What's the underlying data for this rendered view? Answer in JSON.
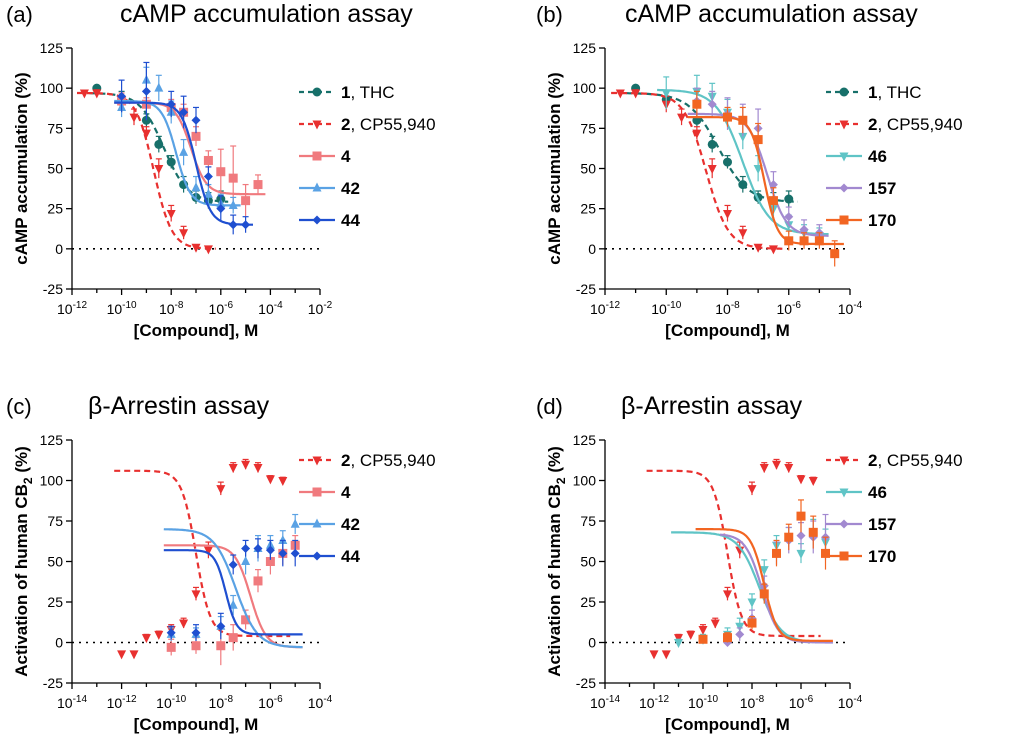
{
  "chart_data": [
    {
      "panel_label": "(a)",
      "title": "cAMP accumulation assay",
      "type": "scatter",
      "x_scale": "log",
      "xlabel": "[Compound], M",
      "ylabel": "cAMP accumulation (%)",
      "xlim": [
        -12,
        -2
      ],
      "ylim": [
        -25,
        125
      ],
      "yticks": [
        -25,
        0,
        25,
        50,
        75,
        100,
        125
      ],
      "xticks": [
        -12,
        -10,
        -8,
        -6,
        -4,
        -2
      ],
      "baseline": 0,
      "legend_position": "right",
      "series": [
        {
          "id": "1",
          "name": "1",
          "name_suffix": ", THC",
          "color": "#17706a",
          "line": "dash",
          "marker": "circle",
          "x": [
            -11.0,
            -10.0,
            -9.0,
            -8.5,
            -8.0,
            -7.5,
            -7.0,
            -6.5,
            -6.0
          ],
          "y": [
            100,
            93,
            80,
            65,
            54,
            40,
            32,
            30,
            31
          ],
          "err": [
            0,
            5,
            4,
            5,
            4,
            5,
            4,
            5,
            5
          ],
          "fit": {
            "top": 97,
            "bottom": 29,
            "logec50": -8.3,
            "hill": 0.9
          }
        },
        {
          "id": "2",
          "name": "2",
          "name_suffix": ", CP55,940",
          "color": "#e8302f",
          "line": "dash",
          "marker": "tri-down",
          "x": [
            -11.5,
            -11.0,
            -10.0,
            -9.5,
            -9.0,
            -8.5,
            -8.0,
            -7.5,
            -7.0,
            -6.5
          ],
          "y": [
            97,
            97,
            90,
            82,
            72,
            50,
            22,
            10,
            1,
            0
          ],
          "err": [
            0,
            2,
            5,
            5,
            4,
            6,
            5,
            4,
            1,
            1
          ],
          "fit": {
            "top": 97,
            "bottom": 0,
            "logec50": -8.7,
            "hill": 1.2
          }
        },
        {
          "id": "4",
          "name": "4",
          "name_suffix": "",
          "color": "#f07a7e",
          "line": "solid",
          "marker": "square",
          "x": [
            -10.0,
            -9.0,
            -8.0,
            -7.5,
            -7.0,
            -6.5,
            -6.0,
            -5.5,
            -5.0,
            -4.5
          ],
          "y": [
            92,
            90,
            88,
            85,
            70,
            55,
            48,
            44,
            30,
            40
          ],
          "err": [
            5,
            4,
            5,
            5,
            6,
            6,
            14,
            20,
            10,
            6
          ],
          "fit": {
            "top": 91,
            "bottom": 34,
            "logec50": -7.2,
            "hill": 1.4
          }
        },
        {
          "id": "42",
          "name": "42",
          "name_suffix": "",
          "color": "#5aa2e4",
          "line": "solid",
          "marker": "triangle",
          "x": [
            -10.0,
            -9.0,
            -8.5,
            -8.0,
            -7.5,
            -7.0,
            -6.5,
            -6.0,
            -5.5
          ],
          "y": [
            88,
            105,
            100,
            85,
            60,
            38,
            34,
            28,
            27
          ],
          "err": [
            6,
            8,
            8,
            7,
            8,
            7,
            6,
            6,
            5
          ],
          "fit": {
            "top": 92,
            "bottom": 27,
            "logec50": -7.8,
            "hill": 1.5
          }
        },
        {
          "id": "44",
          "name": "44",
          "name_suffix": "",
          "color": "#1f4fd0",
          "line": "solid",
          "marker": "diamond",
          "x": [
            -10.0,
            -9.0,
            -8.0,
            -7.5,
            -7.0,
            -6.5,
            -6.0,
            -5.5,
            -5.0
          ],
          "y": [
            95,
            98,
            90,
            85,
            80,
            45,
            25,
            15,
            15
          ],
          "err": [
            10,
            18,
            8,
            10,
            8,
            6,
            8,
            6,
            5
          ],
          "fit": {
            "top": 91,
            "bottom": 15,
            "logec50": -7.0,
            "hill": 1.5
          }
        }
      ]
    },
    {
      "panel_label": "(b)",
      "title": "cAMP accumulation assay",
      "type": "scatter",
      "x_scale": "log",
      "xlabel": "[Compound], M",
      "ylabel": "cAMP accumulation (%)",
      "xlim": [
        -12,
        -4
      ],
      "ylim": [
        -25,
        125
      ],
      "yticks": [
        -25,
        0,
        25,
        50,
        75,
        100,
        125
      ],
      "xticks": [
        -12,
        -10,
        -8,
        -6,
        -4
      ],
      "baseline": 0,
      "legend_position": "right",
      "series": [
        {
          "id": "1",
          "name": "1",
          "name_suffix": ", THC",
          "color": "#17706a",
          "line": "dash",
          "marker": "circle",
          "x": [
            -11.0,
            -10.0,
            -9.0,
            -8.5,
            -8.0,
            -7.5,
            -7.0,
            -6.5,
            -6.0
          ],
          "y": [
            100,
            93,
            80,
            65,
            54,
            40,
            32,
            30,
            31
          ],
          "err": [
            0,
            5,
            4,
            5,
            4,
            5,
            4,
            5,
            5
          ],
          "fit": {
            "top": 97,
            "bottom": 29,
            "logec50": -8.3,
            "hill": 0.9
          }
        },
        {
          "id": "2",
          "name": "2",
          "name_suffix": ", CP55,940",
          "color": "#e8302f",
          "line": "dash",
          "marker": "tri-down",
          "x": [
            -11.5,
            -11.0,
            -10.0,
            -9.5,
            -9.0,
            -8.5,
            -8.0,
            -7.5,
            -7.0,
            -6.5
          ],
          "y": [
            97,
            97,
            90,
            82,
            72,
            50,
            22,
            10,
            1,
            0
          ],
          "err": [
            0,
            2,
            5,
            5,
            4,
            6,
            5,
            4,
            1,
            1
          ],
          "fit": {
            "top": 97,
            "bottom": 0,
            "logec50": -8.7,
            "hill": 1.2
          }
        },
        {
          "id": "46",
          "name": "46",
          "name_suffix": "",
          "color": "#5fc4c6",
          "line": "solid",
          "marker": "tri-down",
          "x": [
            -10.0,
            -9.0,
            -8.5,
            -8.0,
            -7.5,
            -7.0,
            -6.5,
            -6.0,
            -5.5,
            -5.0
          ],
          "y": [
            97,
            98,
            95,
            85,
            70,
            50,
            25,
            15,
            10,
            8
          ],
          "err": [
            10,
            10,
            8,
            8,
            8,
            8,
            7,
            6,
            5,
            5
          ],
          "fit": {
            "top": 99,
            "bottom": 9,
            "logec50": -7.5,
            "hill": 1.0
          }
        },
        {
          "id": "157",
          "name": "157",
          "name_suffix": "",
          "color": "#a289d0",
          "line": "solid",
          "marker": "diamond",
          "x": [
            -9.0,
            -8.5,
            -8.0,
            -7.5,
            -7.0,
            -6.5,
            -6.0,
            -5.5,
            -5.0
          ],
          "y": [
            92,
            90,
            84,
            80,
            75,
            40,
            20,
            12,
            10
          ],
          "err": [
            8,
            8,
            10,
            10,
            12,
            8,
            6,
            6,
            5
          ],
          "fit": {
            "top": 84,
            "bottom": 8,
            "logec50": -6.7,
            "hill": 1.4
          }
        },
        {
          "id": "170",
          "name": "170",
          "name_suffix": "",
          "color": "#f26522",
          "line": "solid",
          "marker": "square",
          "x": [
            -9.0,
            -8.0,
            -7.5,
            -7.0,
            -6.5,
            -6.0,
            -5.5,
            -5.0,
            -4.5
          ],
          "y": [
            90,
            82,
            80,
            68,
            30,
            5,
            5,
            5,
            -3
          ],
          "err": [
            8,
            6,
            8,
            10,
            8,
            6,
            5,
            5,
            8
          ],
          "fit": {
            "top": 82,
            "bottom": 3,
            "logec50": -6.8,
            "hill": 2.0
          }
        }
      ]
    },
    {
      "panel_label": "(c)",
      "title": "β-Arrestin assay",
      "type": "scatter",
      "x_scale": "log",
      "xlabel": "[Compound], M",
      "ylabel_main": "Activation of human CB",
      "ylabel_sub": "2",
      "ylabel_suffix": " (%)",
      "xlim": [
        -14,
        -4
      ],
      "ylim": [
        -25,
        125
      ],
      "yticks": [
        -25,
        0,
        25,
        50,
        75,
        100,
        125
      ],
      "xticks": [
        -14,
        -12,
        -10,
        -8,
        -6,
        -4
      ],
      "baseline": 0,
      "legend_position": "right",
      "series": [
        {
          "id": "2",
          "name": "2",
          "name_suffix": ", CP55,940",
          "color": "#e8302f",
          "line": "dash",
          "marker": "tri-down",
          "x": [
            -12.0,
            -11.5,
            -11.0,
            -10.5,
            -10.0,
            -9.5,
            -9.0,
            -8.5,
            -8.0,
            -7.5,
            -7.0,
            -6.5,
            -6.0,
            -5.5
          ],
          "y": [
            -7,
            -7,
            3,
            5,
            8,
            12,
            30,
            57,
            95,
            108,
            110,
            108,
            101,
            100
          ],
          "err": [
            0,
            0,
            2,
            2,
            3,
            3,
            4,
            5,
            4,
            3,
            3,
            3,
            2,
            2
          ],
          "fit": {
            "top": 106,
            "bottom": 4,
            "logec50": -9.0,
            "hill": 1.5
          }
        },
        {
          "id": "4",
          "name": "4",
          "name_suffix": "",
          "color": "#f07a7e",
          "line": "solid",
          "marker": "square",
          "x": [
            -10.0,
            -9.0,
            -8.0,
            -7.5,
            -7.0,
            -6.5,
            -6.0,
            -5.5,
            -5.0
          ],
          "y": [
            -3,
            -2,
            -2,
            3,
            14,
            38,
            50,
            55,
            60
          ],
          "err": [
            5,
            5,
            12,
            8,
            6,
            7,
            8,
            7,
            6
          ],
          "fit": {
            "top": 60,
            "bottom": -3,
            "logec50": -6.8,
            "hill": 1.4
          }
        },
        {
          "id": "42",
          "name": "42",
          "name_suffix": "",
          "color": "#5aa2e4",
          "line": "solid",
          "marker": "triangle",
          "x": [
            -10.0,
            -9.0,
            -8.0,
            -7.5,
            -7.0,
            -6.5,
            -6.0,
            -5.5,
            -5.0
          ],
          "y": [
            5,
            5,
            10,
            23,
            50,
            58,
            60,
            63,
            73
          ],
          "err": [
            4,
            4,
            6,
            6,
            8,
            8,
            6,
            6,
            6
          ],
          "fit": {
            "top": 70,
            "bottom": -3,
            "logec50": -7.4,
            "hill": 1.0
          }
        },
        {
          "id": "44",
          "name": "44",
          "name_suffix": "",
          "color": "#1f4fd0",
          "line": "solid",
          "marker": "diamond",
          "x": [
            -10.0,
            -9.0,
            -8.0,
            -7.5,
            -7.0,
            -6.5,
            -6.0,
            -5.5,
            -5.0
          ],
          "y": [
            6,
            6,
            10,
            48,
            58,
            58,
            57,
            55,
            55
          ],
          "err": [
            4,
            5,
            8,
            6,
            5,
            6,
            6,
            8,
            8
          ],
          "fit": {
            "top": 57,
            "bottom": 5,
            "logec50": -7.8,
            "hill": 2.0
          }
        }
      ]
    },
    {
      "panel_label": "(d)",
      "title": "β-Arrestin assay",
      "type": "scatter",
      "x_scale": "log",
      "xlabel": "[Compound], M",
      "ylabel_main": "Activation of human CB",
      "ylabel_sub": "2",
      "ylabel_suffix": " (%)",
      "xlim": [
        -14,
        -4
      ],
      "ylim": [
        -25,
        125
      ],
      "yticks": [
        -25,
        0,
        25,
        50,
        75,
        100,
        125
      ],
      "xticks": [
        -14,
        -12,
        -10,
        -8,
        -6,
        -4
      ],
      "baseline": 0,
      "legend_position": "right",
      "series": [
        {
          "id": "2",
          "name": "2",
          "name_suffix": ", CP55,940",
          "color": "#e8302f",
          "line": "dash",
          "marker": "tri-down",
          "x": [
            -12.0,
            -11.5,
            -11.0,
            -10.5,
            -10.0,
            -9.5,
            -9.0,
            -8.5,
            -8.0,
            -7.5,
            -7.0,
            -6.5,
            -6.0,
            -5.5
          ],
          "y": [
            -7,
            -7,
            3,
            5,
            8,
            12,
            30,
            57,
            95,
            108,
            110,
            108,
            101,
            100
          ],
          "err": [
            0,
            0,
            2,
            2,
            3,
            3,
            4,
            5,
            4,
            3,
            3,
            3,
            2,
            2
          ],
          "fit": {
            "top": 106,
            "bottom": 4,
            "logec50": -9.0,
            "hill": 1.5
          }
        },
        {
          "id": "46",
          "name": "46",
          "name_suffix": "",
          "color": "#5fc4c6",
          "line": "solid",
          "marker": "tri-down",
          "x": [
            -11.0,
            -10.0,
            -9.0,
            -8.5,
            -8.0,
            -7.5,
            -7.0,
            -6.5,
            -6.0,
            -5.5,
            -5.0
          ],
          "y": [
            0,
            2,
            5,
            10,
            25,
            45,
            60,
            65,
            55,
            68,
            62
          ],
          "err": [
            2,
            3,
            4,
            5,
            5,
            6,
            6,
            6,
            6,
            8,
            8
          ],
          "fit": {
            "top": 68,
            "bottom": 0,
            "logec50": -7.7,
            "hill": 1.0
          }
        },
        {
          "id": "157",
          "name": "157",
          "name_suffix": "",
          "color": "#a289d0",
          "line": "solid",
          "marker": "diamond",
          "x": [
            -9.0,
            -8.5,
            -8.0,
            -7.5,
            -7.0,
            -6.5,
            -6.0,
            -5.5,
            -5.0
          ],
          "y": [
            0,
            5,
            15,
            35,
            55,
            63,
            66,
            65,
            65
          ],
          "err": [
            2,
            4,
            5,
            6,
            7,
            8,
            8,
            10,
            14
          ],
          "fit": {
            "top": 67,
            "bottom": 0,
            "logec50": -7.6,
            "hill": 1.3
          }
        },
        {
          "id": "170",
          "name": "170",
          "name_suffix": "",
          "color": "#f26522",
          "line": "solid",
          "marker": "square",
          "x": [
            -10.0,
            -9.0,
            -8.0,
            -7.5,
            -7.0,
            -6.5,
            -6.0,
            -5.5,
            -5.0
          ],
          "y": [
            2,
            3,
            12,
            30,
            55,
            65,
            78,
            68,
            55
          ],
          "err": [
            2,
            3,
            4,
            6,
            8,
            8,
            10,
            10,
            10
          ],
          "fit": {
            "top": 70,
            "bottom": 1,
            "logec50": -7.5,
            "hill": 1.6
          }
        }
      ]
    }
  ]
}
